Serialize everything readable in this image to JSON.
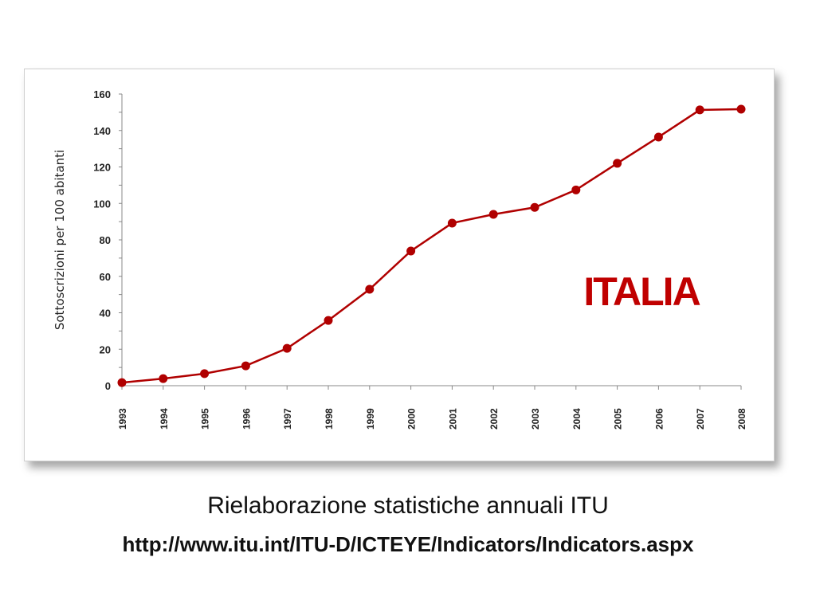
{
  "chart_data": {
    "type": "line",
    "title": "",
    "annotation": "ITALIA",
    "xlabel": "",
    "ylabel": "Sottoscrizioni per 100 abitanti",
    "ylim": [
      0,
      160
    ],
    "yticks": [
      0,
      20,
      40,
      60,
      80,
      100,
      120,
      140,
      160
    ],
    "categories": [
      "1993",
      "1994",
      "1995",
      "1996",
      "1997",
      "1998",
      "1999",
      "2000",
      "2001",
      "2002",
      "2003",
      "2004",
      "2005",
      "2006",
      "2007",
      "2008"
    ],
    "values": [
      1.7,
      3.9,
      6.6,
      10.9,
      20.5,
      35.8,
      52.9,
      73.9,
      89.2,
      94.0,
      97.8,
      107.4,
      122.0,
      136.4,
      151.3,
      151.7
    ],
    "grid": false,
    "line_color": "#b00000"
  },
  "caption": {
    "line1": "Rielaborazione statistiche annuali ITU",
    "line2": "http://www.itu.int/ITU-D/ICTEYE/Indicators/Indicators.aspx"
  }
}
